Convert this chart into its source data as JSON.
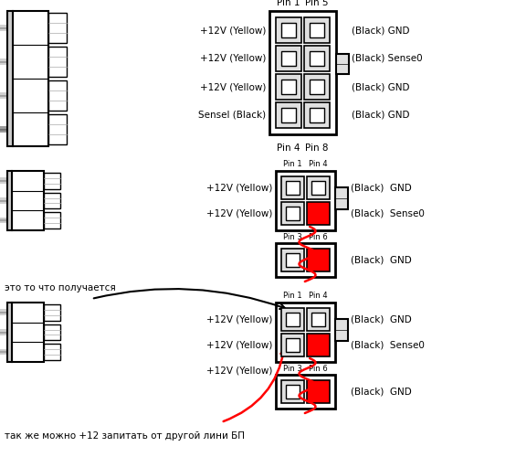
{
  "bg_color": "#ffffff",
  "sec1_left_labels": [
    "+12V (Yellow)",
    "+12V (Yellow)",
    "+12V (Yellow)",
    "Sensel (Black)"
  ],
  "sec1_right_labels": [
    "(Black) GND",
    "(Black) Sense0",
    "(Black) GND",
    "(Black) GND"
  ],
  "sec2_left_labels": [
    "+12V (Yellow)",
    "+12V (Yellow)"
  ],
  "sec2_right_labels": [
    "(Black)  GND",
    "(Black)  Sense0",
    "(Black)  GND"
  ],
  "sec3_left_labels": [
    "+12V (Yellow)",
    "+12V (Yellow)",
    "+12V (Yellow)"
  ],
  "sec3_right_labels": [
    "(Black)  GND",
    "(Black)  Sense0",
    "(Black)  GND"
  ],
  "text_esto": "это то что получается",
  "text_takzhe": "так же можно +12 запитать от другой лини БП",
  "pin1_label": "Pin 1",
  "pin5_label": "Pin 5",
  "pin4_label": "Pin 4",
  "pin8_label": "Pin 8",
  "pin1s_label": "Pin 1",
  "pin4s_label": "Pin 4",
  "pin3_label": "Pin 3",
  "pin6_label": "Pin 6"
}
